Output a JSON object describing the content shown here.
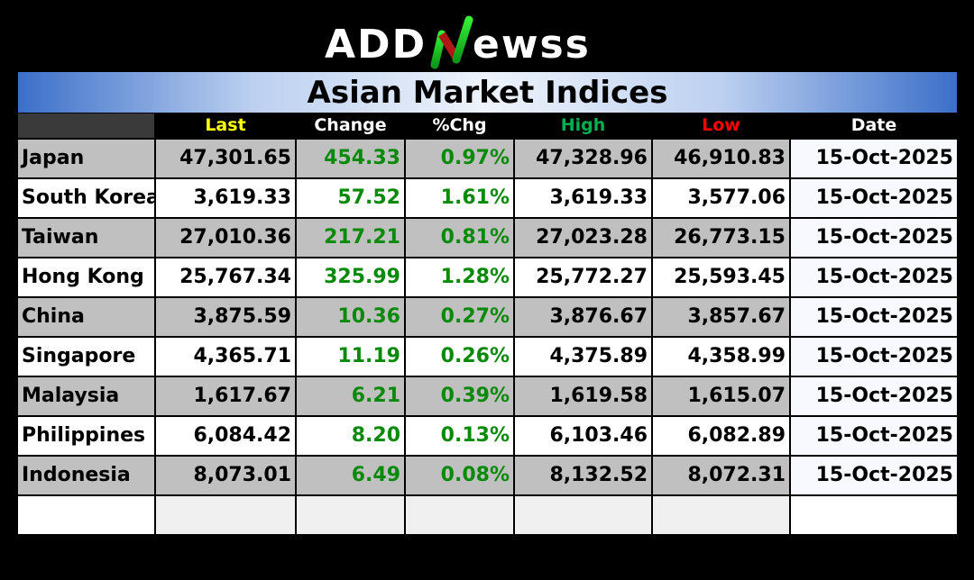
{
  "logo": {
    "text": "ADDNEWSS",
    "colors": {
      "text": "#ffffff",
      "accent_green": "#22cc22",
      "accent_red": "#b01818"
    }
  },
  "title": "Asian Market Indices",
  "columns": [
    {
      "label": "",
      "color": "#ffffff"
    },
    {
      "label": "Last",
      "color": "#ffff00"
    },
    {
      "label": "Change",
      "color": "#ffffff"
    },
    {
      "label": "%Chg",
      "color": "#ffffff"
    },
    {
      "label": "High",
      "color": "#00b050"
    },
    {
      "label": "Low",
      "color": "#ff0000"
    },
    {
      "label": "Date",
      "color": "#ffffff"
    }
  ],
  "rows": [
    {
      "name": "Japan",
      "last": "47,301.65",
      "change": "454.33",
      "pct": "0.97%",
      "high": "47,328.96",
      "low": "46,910.83",
      "date": "15-Oct-2025"
    },
    {
      "name": "South Korea",
      "last": "3,619.33",
      "change": "57.52",
      "pct": "1.61%",
      "high": "3,619.33",
      "low": "3,577.06",
      "date": "15-Oct-2025"
    },
    {
      "name": "Taiwan",
      "last": "27,010.36",
      "change": "217.21",
      "pct": "0.81%",
      "high": "27,023.28",
      "low": "26,773.15",
      "date": "15-Oct-2025"
    },
    {
      "name": "Hong Kong",
      "last": "25,767.34",
      "change": "325.99",
      "pct": "1.28%",
      "high": "25,772.27",
      "low": "25,593.45",
      "date": "15-Oct-2025"
    },
    {
      "name": "China",
      "last": "3,875.59",
      "change": "10.36",
      "pct": "0.27%",
      "high": "3,876.67",
      "low": "3,857.67",
      "date": "15-Oct-2025"
    },
    {
      "name": "Singapore",
      "last": "4,365.71",
      "change": "11.19",
      "pct": "0.26%",
      "high": "4,375.89",
      "low": "4,358.99",
      "date": "15-Oct-2025"
    },
    {
      "name": "Malaysia",
      "last": "1,617.67",
      "change": "6.21",
      "pct": "0.39%",
      "high": "1,619.58",
      "low": "1,615.07",
      "date": "15-Oct-2025"
    },
    {
      "name": "Philippines",
      "last": "6,084.42",
      "change": "8.20",
      "pct": "0.13%",
      "high": "6,103.46",
      "low": "6,082.89",
      "date": "15-Oct-2025"
    },
    {
      "name": "Indonesia",
      "last": "8,073.01",
      "change": "6.49",
      "pct": "0.08%",
      "high": "8,132.52",
      "low": "8,072.31",
      "date": "15-Oct-2025"
    }
  ],
  "colors": {
    "positive": "#0a8a0a",
    "stripe": "#c0c0c0"
  }
}
